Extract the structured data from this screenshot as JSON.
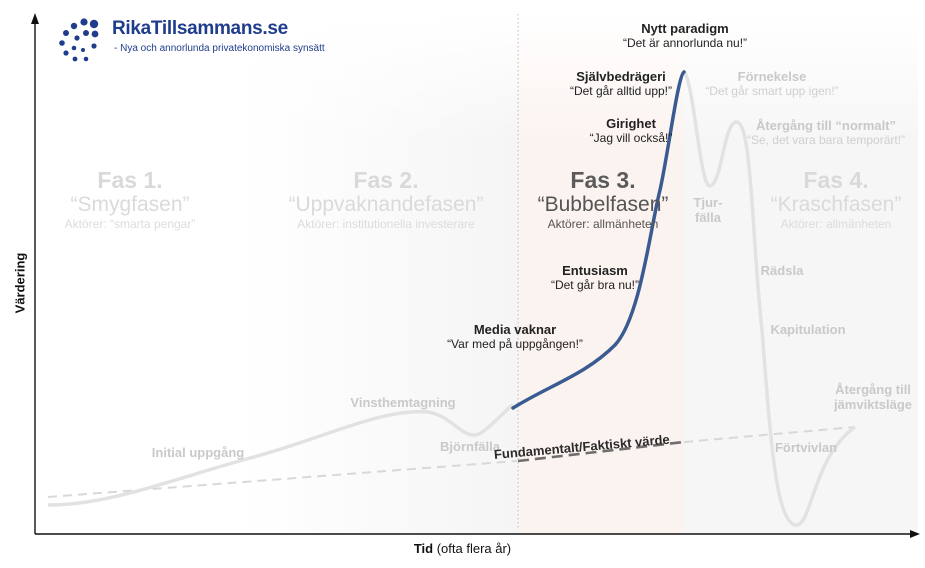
{
  "brand": {
    "name": "RikaTillsammans.se",
    "tagline": "- Nya och annorlunda privatekonomiska synsätt",
    "color": "#1f3d8c"
  },
  "axes": {
    "x_bold": "Tid",
    "x_rest": " (ofta flera år)",
    "y": "Värdering"
  },
  "phases": [
    {
      "title": "Fas 1.",
      "nickname": "“Smygfasen”",
      "actors": "Aktörer: “smarta pengar”"
    },
    {
      "title": "Fas 2.",
      "nickname": "“Uppvaknandefasen”",
      "actors": "Aktörer: institutionella investerare"
    },
    {
      "title": "Fas 3.",
      "nickname": "“Bubbelfasen”",
      "actors": "Aktörer: allmänheten"
    },
    {
      "title": "Fas 4.",
      "nickname": "“Kraschfasen”",
      "actors": "Aktörer: allmänheten"
    }
  ],
  "events": [
    {
      "heading": "Initial uppgång"
    },
    {
      "heading": "Vinsthemtagning"
    },
    {
      "heading": "Björnfälla"
    },
    {
      "heading": "Media vaknar",
      "quote": "“Var med på uppgången!”"
    },
    {
      "heading": "Entusiasm",
      "quote": "“Det går bra nu!”"
    },
    {
      "heading": "Girighet",
      "quote": "“Jag vill också!”"
    },
    {
      "heading": "Självbedrägeri",
      "quote": "“Det går alltid upp!”"
    },
    {
      "heading": "Nytt paradigm",
      "quote": "“Det är annorlunda nu!”"
    },
    {
      "heading": "Förnekelse",
      "quote": "“Det går smart upp igen!”"
    },
    {
      "heading": "Återgång till “normalt”",
      "quote": "“Se, det vara bara temporärt!”"
    },
    {
      "heading": "Tjur-",
      "quote": "fälla"
    },
    {
      "heading": "Rädsla"
    },
    {
      "heading": "Kapitulation"
    },
    {
      "heading": "Återgång till",
      "quote": "jämviktsläge"
    },
    {
      "heading": "Förtvivlan"
    }
  ],
  "fundamental_label": "Fundamentalt/Faktiskt värde",
  "colors": {
    "highlight_curve": "#3a5b91",
    "faded_curve": "#e2e2e2",
    "fundamental_dark": "#6e6e6e",
    "fundamental_faded": "#d8d8d8",
    "phase3_background": "#fbf3ef"
  }
}
